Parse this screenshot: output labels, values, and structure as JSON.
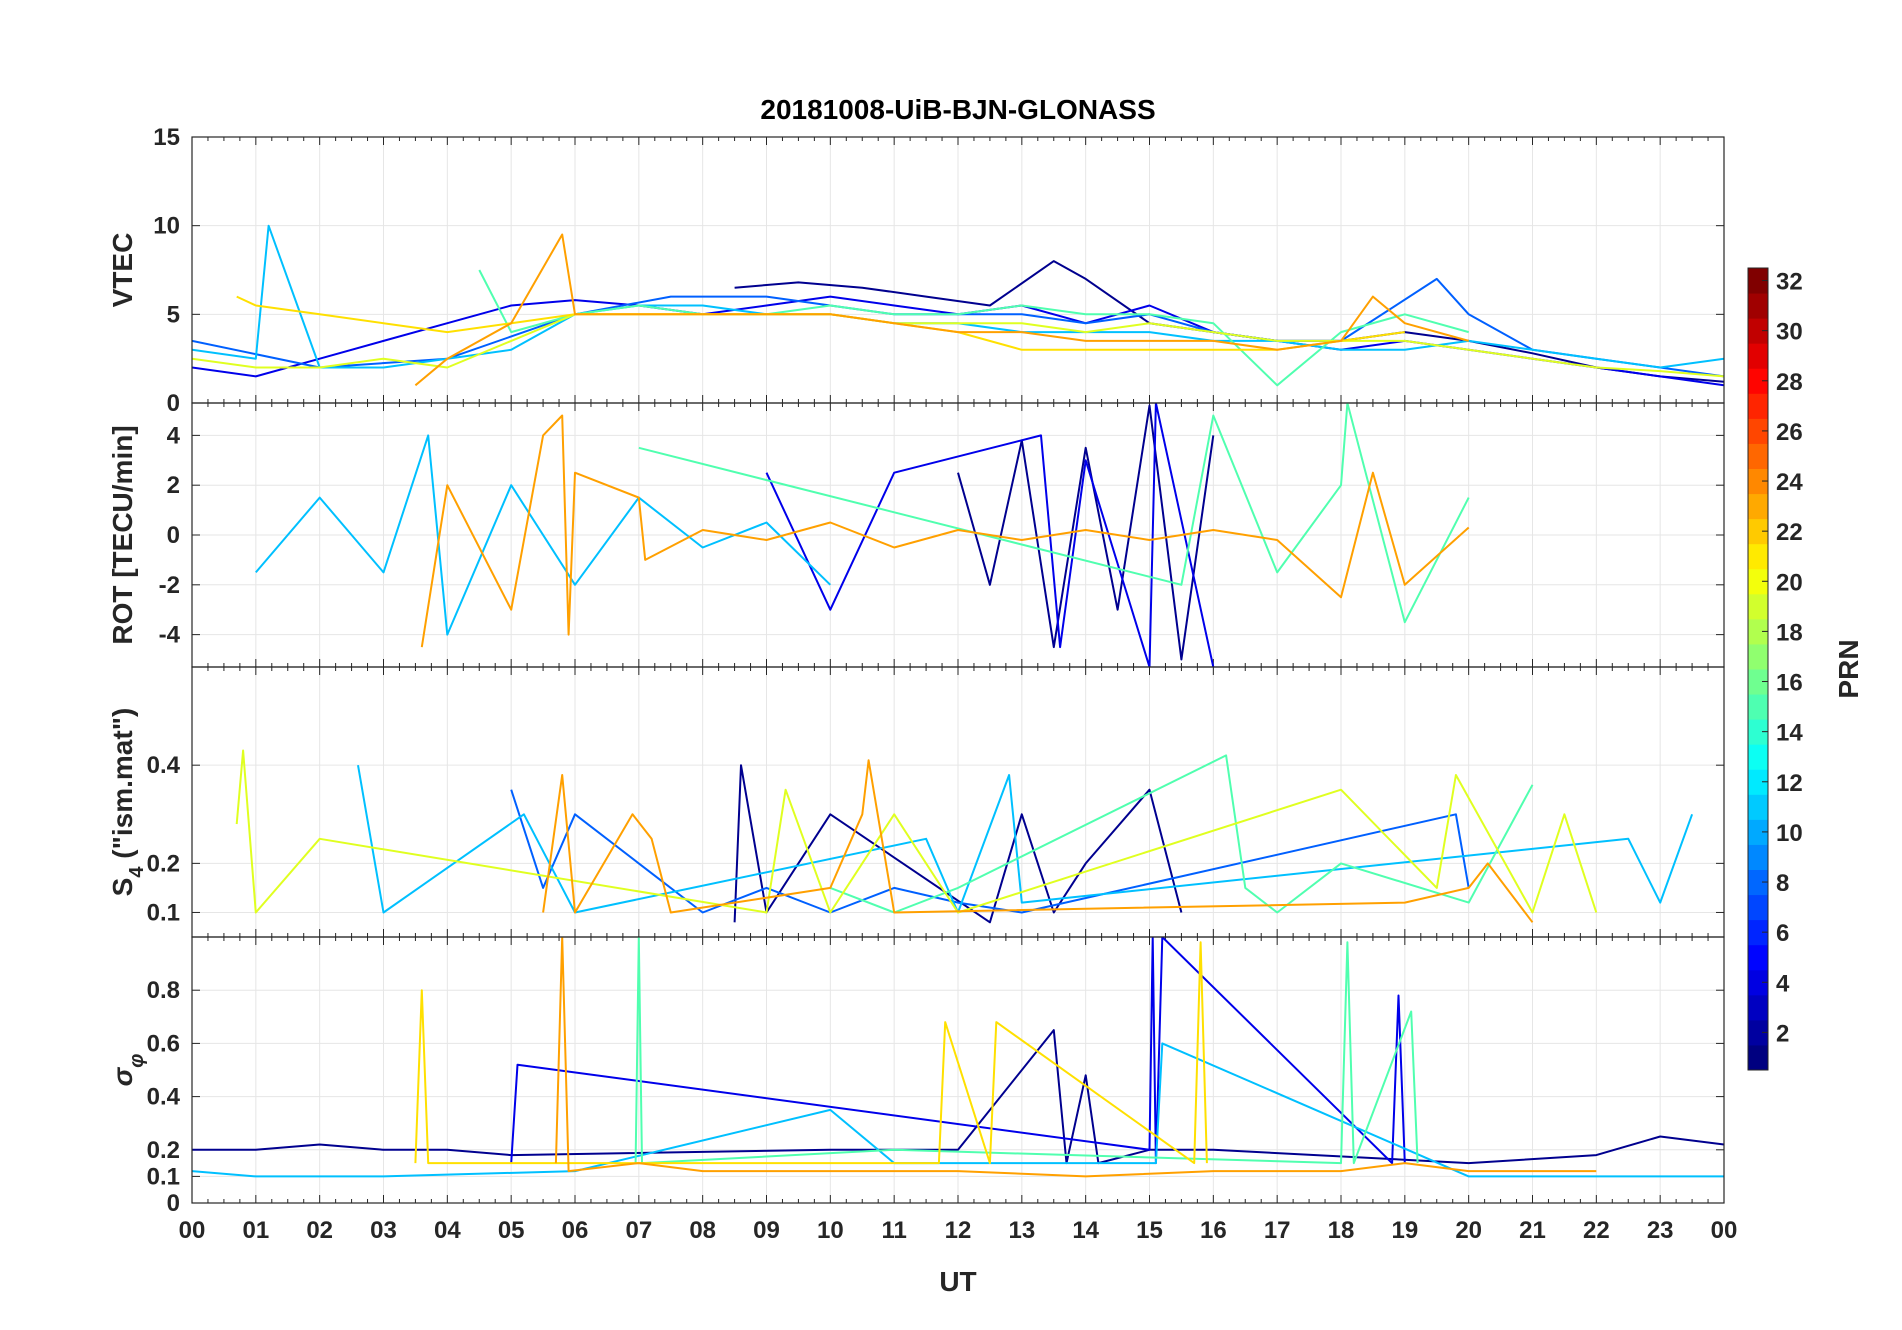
{
  "chart_data": {
    "type": "line",
    "title": "20181008-UiB-BJN-GLONASS",
    "xlabel": "UT",
    "x_tick_labels": [
      "00",
      "01",
      "02",
      "03",
      "04",
      "05",
      "06",
      "07",
      "08",
      "09",
      "10",
      "11",
      "12",
      "13",
      "14",
      "15",
      "16",
      "17",
      "18",
      "19",
      "20",
      "21",
      "22",
      "23",
      "00"
    ],
    "xlim_hours": [
      0,
      24
    ],
    "grid": true,
    "colorbar": {
      "label": "PRN",
      "colormap": "jet",
      "range": [
        1,
        32
      ],
      "tick_labels": [
        "2",
        "4",
        "6",
        "8",
        "10",
        "12",
        "14",
        "16",
        "18",
        "20",
        "22",
        "24",
        "26",
        "28",
        "30",
        "32"
      ]
    },
    "series_colors": {
      "prn1": "#00008f",
      "prn3": "#0000ea",
      "prn7": "#0060ff",
      "prn9": "#0090ff",
      "prn11": "#00c0ff",
      "prn13": "#20e0e0",
      "prn15": "#50ffaf",
      "prn17": "#a0ff60",
      "prn19": "#e0ff20",
      "prn21": "#ffe000",
      "prn23": "#ffa000"
    },
    "panels": [
      {
        "name": "vtec",
        "ylabel": "VTEC",
        "ylim": [
          0,
          15
        ],
        "y_tick_labels": [
          "0",
          "5",
          "10",
          "15"
        ],
        "series": [
          {
            "prn": 1,
            "x": [
              8.5,
              9.5,
              10.5,
              11.5,
              12.5,
              13.5,
              14,
              15,
              16,
              17,
              18,
              19,
              20,
              21,
              22,
              23,
              24
            ],
            "y": [
              6.5,
              6.8,
              6.5,
              6.0,
              5.5,
              8.0,
              7.0,
              4.5,
              4.0,
              3.5,
              3.5,
              4.0,
              3.5,
              2.8,
              2.0,
              1.5,
              1.2
            ]
          },
          {
            "prn": 3,
            "x": [
              0,
              1,
              2,
              3,
              4,
              5,
              6,
              7,
              8,
              9,
              10,
              11,
              12,
              13,
              14,
              15,
              16,
              17,
              18,
              19,
              20,
              21,
              22,
              23,
              24
            ],
            "y": [
              2.0,
              1.5,
              2.5,
              3.5,
              4.5,
              5.5,
              5.8,
              5.5,
              5.0,
              5.5,
              6.0,
              5.5,
              5.0,
              5.5,
              4.5,
              5.5,
              4.0,
              3.5,
              3.0,
              3.5,
              3.0,
              2.5,
              2.0,
              1.5,
              1.0
            ]
          },
          {
            "prn": 7,
            "x": [
              0,
              2,
              4,
              6,
              7.5,
              9,
              10,
              11,
              12,
              13,
              14,
              15,
              16,
              17,
              18,
              19.5,
              20,
              21,
              22,
              23,
              24
            ],
            "y": [
              3.5,
              2.0,
              2.5,
              5.0,
              6.0,
              6.0,
              5.5,
              5.0,
              5.0,
              5.0,
              4.5,
              5.0,
              4.0,
              3.5,
              3.5,
              7.0,
              5.0,
              3.0,
              2.5,
              2.0,
              1.5
            ]
          },
          {
            "prn": 11,
            "x": [
              0,
              1,
              1.2,
              2,
              3,
              4,
              5,
              6,
              7,
              8,
              9,
              10,
              11,
              12,
              13,
              14,
              15,
              16,
              17,
              18,
              19,
              20,
              21,
              22,
              23,
              24
            ],
            "y": [
              3.0,
              2.5,
              10.0,
              2.0,
              2.0,
              2.5,
              3.0,
              5.0,
              5.5,
              5.5,
              5.0,
              5.0,
              4.5,
              4.5,
              4.0,
              4.0,
              4.0,
              3.5,
              3.5,
              3.0,
              3.0,
              3.5,
              3.0,
              2.5,
              2.0,
              2.5
            ]
          },
          {
            "prn": 15,
            "x": [
              4.5,
              5,
              6,
              7,
              8,
              9,
              10,
              11,
              12,
              13,
              14,
              15,
              16,
              17,
              18,
              19,
              20
            ],
            "y": [
              7.5,
              4.0,
              5.0,
              5.5,
              5.0,
              5.0,
              5.5,
              5.0,
              5.0,
              5.5,
              5.0,
              5.0,
              4.5,
              1.0,
              4.0,
              5.0,
              4.0
            ]
          },
          {
            "prn": 19,
            "x": [
              0,
              1,
              2,
              3,
              4,
              5,
              6,
              7,
              8,
              9,
              10,
              11,
              12,
              13,
              14,
              15,
              16,
              17,
              18,
              19,
              20,
              21,
              22,
              23,
              24
            ],
            "y": [
              2.5,
              2.0,
              2.0,
              2.5,
              2.0,
              3.5,
              5.0,
              5.0,
              5.0,
              5.0,
              5.0,
              4.5,
              4.5,
              4.5,
              4.0,
              4.5,
              4.0,
              3.5,
              3.5,
              3.5,
              3.0,
              2.5,
              2.0,
              1.8,
              1.5
            ]
          },
          {
            "prn": 21,
            "x": [
              0.7,
              1,
              2,
              3,
              4,
              5,
              6,
              7,
              8,
              9,
              10,
              11,
              12,
              13,
              14,
              15,
              16,
              17,
              18,
              19
            ],
            "y": [
              6.0,
              5.5,
              5.0,
              4.5,
              4.0,
              4.5,
              5.0,
              5.0,
              5.0,
              5.0,
              5.0,
              4.5,
              4.0,
              3.0,
              3.0,
              3.0,
              3.0,
              3.0,
              3.5,
              4.0
            ]
          },
          {
            "prn": 23,
            "x": [
              3.5,
              4,
              5,
              5.8,
              6,
              7,
              8,
              9,
              10,
              11,
              12,
              13,
              14,
              15,
              16,
              17,
              18,
              18.5,
              19,
              20
            ],
            "y": [
              1.0,
              2.5,
              4.5,
              9.5,
              5.0,
              5.0,
              5.0,
              5.0,
              5.0,
              4.5,
              4.0,
              4.0,
              3.5,
              3.5,
              3.5,
              3.0,
              3.5,
              6.0,
              4.5,
              3.5
            ]
          }
        ]
      },
      {
        "name": "rot",
        "ylabel": "ROT [TECU/min]",
        "ylim": [
          -5.3,
          5.3
        ],
        "y_tick_labels": [
          "-4",
          "-2",
          "0",
          "2",
          "4"
        ],
        "series": [
          {
            "prn": 1,
            "x": [
              12,
              12.5,
              13,
              13.5,
              14,
              14.5,
              15,
              15.5,
              16
            ],
            "y": [
              2.5,
              -2.0,
              3.8,
              -4.5,
              3.5,
              -3.0,
              5.2,
              -5.0,
              4.0
            ]
          },
          {
            "prn": 3,
            "x": [
              9,
              10,
              11,
              13.3,
              13.6,
              14,
              15,
              15.1,
              16
            ],
            "y": [
              2.5,
              -3.0,
              2.5,
              4.0,
              -4.5,
              3.0,
              -5.3,
              5.3,
              -5.3
            ]
          },
          {
            "prn": 11,
            "x": [
              1,
              2,
              3,
              3.7,
              4,
              5,
              6,
              7,
              8,
              9,
              10
            ],
            "y": [
              -1.5,
              1.5,
              -1.5,
              4.0,
              -4.0,
              2.0,
              -2.0,
              1.5,
              -0.5,
              0.5,
              -2.0
            ]
          },
          {
            "prn": 15,
            "x": [
              7,
              15.5,
              16,
              17,
              18,
              18.1,
              19,
              20
            ],
            "y": [
              3.5,
              -2.0,
              4.8,
              -1.5,
              2.0,
              5.3,
              -3.5,
              1.5
            ]
          },
          {
            "prn": 23,
            "x": [
              3.6,
              4,
              5,
              5.5,
              5.8,
              5.9,
              6,
              7,
              7.1,
              8,
              9,
              10,
              11,
              12,
              13,
              14,
              15,
              16,
              17,
              18,
              18.5,
              19,
              20
            ],
            "y": [
              -4.5,
              2.0,
              -3.0,
              4.0,
              4.8,
              -4.0,
              2.5,
              1.5,
              -1.0,
              0.2,
              -0.2,
              0.5,
              -0.5,
              0.2,
              -0.2,
              0.2,
              -0.2,
              0.2,
              -0.2,
              -2.5,
              2.5,
              -2.0,
              0.3
            ]
          }
        ]
      },
      {
        "name": "s4",
        "ylabel": "S4 (\"ism.mat\")",
        "ylabel_main": "S",
        "ylabel_sub": "4",
        "ylabel_rest": " (\"ism.mat\")",
        "ylim": [
          0.05,
          0.6
        ],
        "y_tick_labels": [
          "0.1",
          "0.2",
          "0.4"
        ],
        "y_tick_values": [
          0.1,
          0.2,
          0.4
        ],
        "series": [
          {
            "prn": 1,
            "x": [
              8.5,
              8.6,
              9,
              10,
              12.5,
              13,
              13.5,
              14,
              15,
              15.5
            ],
            "y": [
              0.08,
              0.4,
              0.1,
              0.3,
              0.08,
              0.3,
              0.1,
              0.2,
              0.35,
              0.1
            ]
          },
          {
            "prn": 7,
            "x": [
              5,
              5.5,
              6,
              7,
              8,
              9,
              10,
              11,
              12,
              13,
              19.8,
              20
            ],
            "y": [
              0.35,
              0.15,
              0.3,
              0.2,
              0.1,
              0.15,
              0.1,
              0.15,
              0.12,
              0.1,
              0.3,
              0.15
            ]
          },
          {
            "prn": 11,
            "x": [
              2.6,
              3,
              5.2,
              6,
              11.5,
              12,
              12.8,
              13,
              22.5,
              23,
              23.5
            ],
            "y": [
              0.4,
              0.1,
              0.3,
              0.1,
              0.25,
              0.1,
              0.38,
              0.12,
              0.25,
              0.12,
              0.3
            ]
          },
          {
            "prn": 15,
            "x": [
              10,
              11,
              12,
              16.2,
              16.5,
              17,
              18,
              20,
              21
            ],
            "y": [
              0.15,
              0.1,
              0.15,
              0.42,
              0.15,
              0.1,
              0.2,
              0.12,
              0.36
            ]
          },
          {
            "prn": 19,
            "x": [
              0.7,
              0.8,
              1,
              2,
              9,
              9.3,
              10,
              11,
              12,
              18,
              19.5,
              19.8,
              21,
              21.5,
              22
            ],
            "y": [
              0.28,
              0.43,
              0.1,
              0.25,
              0.1,
              0.35,
              0.1,
              0.3,
              0.1,
              0.35,
              0.15,
              0.38,
              0.1,
              0.3,
              0.1
            ]
          },
          {
            "prn": 23,
            "x": [
              5.5,
              5.8,
              6,
              6.9,
              7.2,
              7.5,
              10,
              10.5,
              10.6,
              11,
              19,
              20,
              20.3,
              21
            ],
            "y": [
              0.1,
              0.38,
              0.1,
              0.3,
              0.25,
              0.1,
              0.15,
              0.3,
              0.41,
              0.1,
              0.12,
              0.15,
              0.2,
              0.08
            ]
          }
        ]
      },
      {
        "name": "sigma_phi",
        "ylabel": "σφ",
        "ylabel_main": "σ",
        "ylabel_sub": "φ",
        "ylim": [
          0,
          1.0
        ],
        "y_tick_labels": [
          "0",
          "0.1",
          "0.2",
          "0.4",
          "0.6",
          "0.8"
        ],
        "y_tick_values": [
          0,
          0.1,
          0.2,
          0.4,
          0.6,
          0.8
        ],
        "series": [
          {
            "prn": 1,
            "x": [
              0,
              1,
              2,
              3,
              4,
              5,
              10,
              12,
              13.5,
              13.7,
              14,
              14.2,
              15,
              16,
              20,
              22,
              23,
              24
            ],
            "y": [
              0.2,
              0.2,
              0.22,
              0.2,
              0.2,
              0.18,
              0.2,
              0.2,
              0.65,
              0.15,
              0.48,
              0.15,
              0.2,
              0.2,
              0.15,
              0.18,
              0.25,
              0.22
            ]
          },
          {
            "prn": 3,
            "x": [
              5,
              5.1,
              15,
              15.05,
              15.1,
              15.2,
              18.8,
              18.9,
              19
            ],
            "y": [
              0.15,
              0.52,
              0.2,
              1.0,
              0.15,
              1.0,
              0.15,
              0.78,
              0.15
            ]
          },
          {
            "prn": 11,
            "x": [
              0,
              1,
              3,
              6,
              10,
              11,
              15.1,
              15.2,
              20,
              22,
              24
            ],
            "y": [
              0.12,
              0.1,
              0.1,
              0.12,
              0.35,
              0.15,
              0.15,
              0.6,
              0.1,
              0.1,
              0.1
            ]
          },
          {
            "prn": 15,
            "x": [
              6.95,
              7,
              7.05,
              11,
              18,
              18.1,
              18.2,
              19.1,
              19.2
            ],
            "y": [
              0.15,
              1.0,
              0.15,
              0.2,
              0.15,
              0.98,
              0.15,
              0.72,
              0.15
            ]
          },
          {
            "prn": 21,
            "x": [
              3.5,
              3.6,
              3.7,
              11.7,
              11.8,
              12.5,
              12.6,
              15.7,
              15.8,
              15.9
            ],
            "y": [
              0.15,
              0.8,
              0.15,
              0.15,
              0.68,
              0.15,
              0.68,
              0.15,
              0.98,
              0.15
            ]
          },
          {
            "prn": 23,
            "x": [
              5.7,
              5.8,
              5.9,
              7,
              8,
              10,
              12,
              14,
              16,
              18,
              19,
              20,
              22
            ],
            "y": [
              0.15,
              1.0,
              0.12,
              0.15,
              0.12,
              0.12,
              0.12,
              0.1,
              0.12,
              0.12,
              0.15,
              0.12,
              0.12
            ]
          }
        ]
      }
    ]
  }
}
